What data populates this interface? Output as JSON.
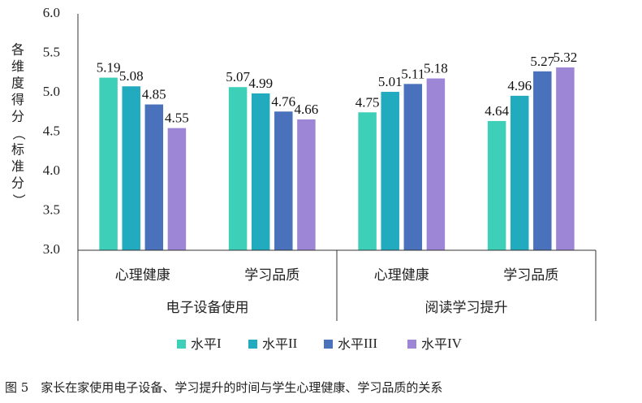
{
  "caption": "图 5　家长在家使用电子设备、学习提升的时间与学生心理健康、学习品质的关系",
  "chart_data": {
    "type": "bar",
    "title": "",
    "ylabel": "各维度得分（标准分）",
    "ylim": [
      3.0,
      6.0
    ],
    "yticks": [
      "3.0",
      "3.5",
      "4.0",
      "4.5",
      "5.0",
      "5.5",
      "6.0"
    ],
    "categories": [
      "心理健康",
      "学习品质",
      "心理健康",
      "学习品质"
    ],
    "groups": [
      "电子设备使用",
      "阅读学习提升"
    ],
    "series": [
      {
        "name": "水平I",
        "color": "#3ecfb8",
        "values": [
          5.19,
          5.07,
          4.75,
          4.64
        ]
      },
      {
        "name": "水平II",
        "color": "#22aabf",
        "values": [
          5.08,
          4.99,
          5.01,
          4.96
        ]
      },
      {
        "name": "水平III",
        "color": "#4a72bc",
        "values": [
          4.85,
          4.76,
          5.11,
          5.27
        ]
      },
      {
        "name": "水平IV",
        "color": "#9d86d6",
        "values": [
          4.55,
          4.66,
          5.18,
          5.32
        ]
      }
    ],
    "legend_position": "bottom",
    "grid": false
  }
}
